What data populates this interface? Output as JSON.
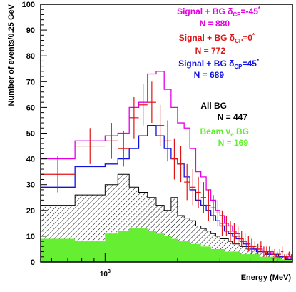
{
  "chart_data": {
    "type": "histogram",
    "xscale": "log",
    "xlim": [
      540,
      6000
    ],
    "ylim": [
      0,
      100
    ],
    "xlabel": "Energy (MeV)",
    "ylabel": "Number of events/0.25 GeV",
    "xtick_labels": [
      {
        "value": 1000,
        "base": "10",
        "exp": "3"
      }
    ],
    "yticks": [
      0,
      10,
      20,
      30,
      40,
      50,
      60,
      70,
      80,
      90,
      100
    ],
    "bin_edges": [
      540,
      750,
      1000,
      1130,
      1260,
      1380,
      1500,
      1630,
      1760,
      1880,
      2000,
      2130,
      2250,
      2380,
      2500,
      2630,
      2750,
      2880,
      3000,
      3130,
      3250,
      3380,
      3500,
      3630,
      3750,
      3880,
      4000,
      4130,
      4250,
      4380,
      4500,
      4630,
      4750,
      4880,
      5000,
      5130,
      5250,
      5380,
      5500,
      5630,
      5750,
      5880,
      6000
    ],
    "series": [
      {
        "name": "Signal + BG δCP=-45°",
        "label": {
          "prefix": "Signal + BG δ",
          "sub": "CP",
          "value": "=-45",
          "sup": "*"
        },
        "count_label": "N = 880",
        "color": "#e600e6",
        "style": "step",
        "values": [
          40,
          47,
          49,
          50,
          60,
          62,
          73,
          74,
          67,
          60,
          54,
          52,
          44,
          35,
          33,
          28,
          24,
          20,
          18,
          15,
          14,
          12,
          11,
          9,
          8,
          7,
          6,
          5,
          5,
          5,
          4,
          3,
          3,
          4,
          3,
          2,
          2,
          2,
          2,
          1,
          2,
          1
        ]
      },
      {
        "name": "Signal + BG δCP=0°",
        "label": {
          "prefix": "Signal + BG δ",
          "sub": "CP",
          "value": "=0",
          "sup": "*"
        },
        "count_label": "N = 772",
        "color": "#e01414",
        "style": "points",
        "errors": [
          7,
          7,
          7,
          7,
          8,
          8,
          8,
          8,
          8,
          8,
          7,
          7,
          7,
          6,
          6,
          6,
          5,
          5,
          5,
          4,
          4,
          4,
          4,
          3,
          3,
          3,
          3,
          2,
          2,
          2,
          2,
          2,
          2,
          2,
          2,
          2,
          2,
          2,
          1,
          1,
          1,
          1
        ],
        "values": [
          34,
          45,
          47,
          44,
          56,
          61,
          62,
          53,
          47,
          40,
          38,
          31,
          29,
          27,
          25,
          22,
          21,
          19,
          15,
          14,
          12,
          11,
          10,
          9,
          8,
          7,
          6,
          6,
          5,
          6,
          4,
          4,
          4,
          3,
          3,
          2,
          3,
          4,
          2,
          2,
          3,
          2
        ]
      },
      {
        "name": "Signal + BG δCP=45°",
        "label": {
          "prefix": "Signal + BG δ",
          "sub": "CP",
          "value": "=45",
          "sup": "*"
        },
        "count_label": "N = 689",
        "color": "#1010e0",
        "style": "step",
        "values": [
          29,
          37,
          38,
          40,
          44,
          49,
          53,
          49,
          44,
          40,
          38,
          33,
          28,
          24,
          22,
          20,
          18,
          16,
          14,
          12,
          11,
          10,
          9,
          8,
          7,
          6,
          5,
          5,
          4,
          4,
          4,
          3,
          3,
          3,
          3,
          2,
          2,
          2,
          2,
          1,
          1,
          1
        ]
      },
      {
        "name": "All BG",
        "label_text": "All BG",
        "count_label": "N = 447",
        "color": "#000000",
        "style": "hatched",
        "values": [
          22,
          26,
          30,
          34,
          29,
          27,
          25,
          22,
          20,
          25,
          18,
          17,
          16,
          14,
          13,
          12,
          11,
          10,
          9,
          9,
          8,
          7,
          7,
          6,
          6,
          5,
          5,
          5,
          4,
          4,
          4,
          4,
          3,
          3,
          3,
          3,
          2,
          2,
          2,
          2,
          1,
          1
        ]
      },
      {
        "name": "Beam νe BG",
        "label": {
          "prefix": "Beam ν",
          "sub": "e",
          "value": " BG"
        },
        "count_label": "N = 169",
        "color": "#66ee33",
        "style": "filled",
        "values": [
          9,
          8,
          11,
          12,
          13,
          13,
          12,
          11,
          10,
          9,
          8,
          8,
          7,
          7,
          6,
          6,
          5,
          5,
          5,
          4,
          4,
          4,
          4,
          3,
          3,
          3,
          3,
          3,
          3,
          2,
          2,
          2,
          2,
          2,
          2,
          2,
          2,
          1,
          1,
          1,
          1,
          1
        ]
      }
    ]
  }
}
